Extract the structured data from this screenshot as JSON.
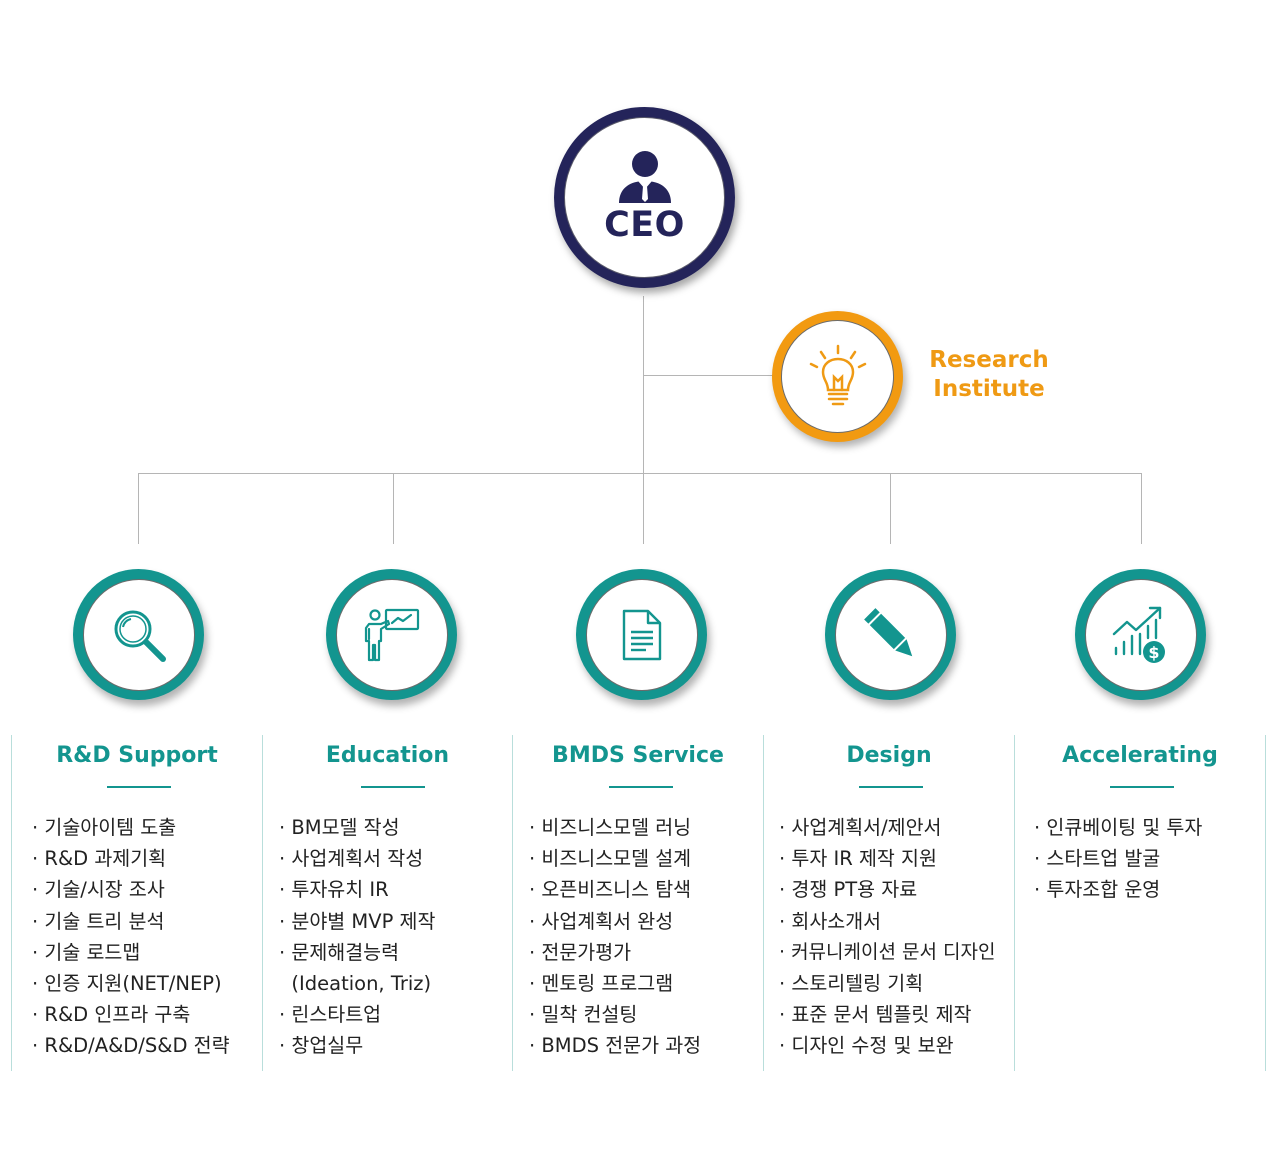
{
  "ceo": {
    "label": "CEO"
  },
  "research_institute": {
    "label_line1": "Research",
    "label_line2": "Institute"
  },
  "departments": [
    {
      "title": "R&D Support",
      "icon": "magnifier-icon",
      "items": [
        "· 기술아이템 도출",
        "· R&D 과제기획",
        "· 기술/시장 조사",
        "· 기술 트리 분석",
        "· 기술 로드맵",
        "· 인증 지원(NET/NEP)",
        "· R&D 인프라 구축",
        "· R&D/A&D/S&D 전략"
      ]
    },
    {
      "title": "Education",
      "icon": "presenter-icon",
      "items": [
        "· BM모델 작성",
        "· 사업계획서 작성",
        "· 투자유치 IR",
        "· 분야별 MVP 제작",
        "· 문제해결능력",
        "  (Ideation, Triz)",
        "· 린스타트업",
        "· 창업실무"
      ]
    },
    {
      "title": "BMDS Service",
      "icon": "document-icon",
      "items": [
        "· 비즈니스모델 러닝",
        "· 비즈니스모델 설계",
        "· 오픈비즈니스 탐색",
        "· 사업계획서 완성",
        "· 전문가평가",
        "· 멘토링 프로그램",
        "· 밀착 컨설팅",
        "· BMDS 전문가 과정"
      ]
    },
    {
      "title": "Design",
      "icon": "pencil-icon",
      "items": [
        "· 사업계획서/제안서",
        "· 투자 IR 제작 지원",
        "· 경쟁 PT용 자료",
        "· 회사소개서",
        "· 커뮤니케이션 문서 디자인",
        "· 스토리텔링 기획",
        "· 표준 문서 템플릿 제작",
        "· 디자인 수정 및 보완"
      ]
    },
    {
      "title": "Accelerating",
      "icon": "growth-chart-icon",
      "items": [
        "· 인큐베이팅 및 투자",
        "· 스타트업 발굴",
        "· 투자조합 운영"
      ]
    }
  ],
  "colors": {
    "navy": "#24245a",
    "orange": "#f29a11",
    "teal": "#13958f",
    "line": "#b5b5b5"
  }
}
